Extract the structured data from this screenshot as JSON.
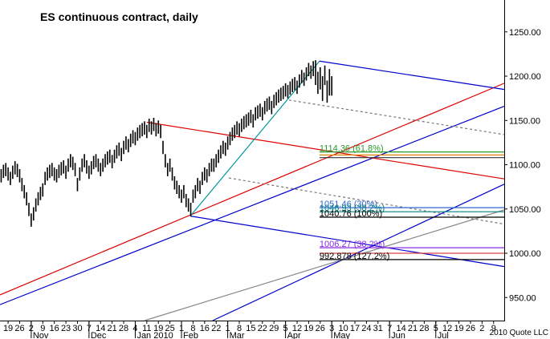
{
  "chart_data": {
    "type": "ohlc",
    "title": "ES continuous contract, daily",
    "copyright": "2010 Quote LLC",
    "color": "#000000",
    "xlim": [
      -0.5,
      217.6
    ],
    "ylim": [
      924,
      1286
    ],
    "yticks": [
      {
        "value": 950,
        "label": "950.00"
      },
      {
        "value": 1000,
        "label": "1000.00"
      },
      {
        "value": 1050,
        "label": "1050.00"
      },
      {
        "value": 1100,
        "label": "1100.00"
      },
      {
        "value": 1150,
        "label": "1150.00"
      },
      {
        "value": 1200,
        "label": "1200.00"
      },
      {
        "value": 1250,
        "label": "1250.00"
      }
    ],
    "xticks": [
      {
        "value": 3,
        "label": "19"
      },
      {
        "value": 8,
        "label": "26"
      },
      {
        "value": 13,
        "label": "2"
      },
      {
        "value": 18,
        "label": "9"
      },
      {
        "value": 23,
        "label": "16"
      },
      {
        "value": 28,
        "label": "23"
      },
      {
        "value": 33,
        "label": "30"
      },
      {
        "value": 38,
        "label": "7"
      },
      {
        "value": 43,
        "label": "14"
      },
      {
        "value": 48,
        "label": "21"
      },
      {
        "value": 53,
        "label": "28"
      },
      {
        "value": 58,
        "label": "4"
      },
      {
        "value": 63,
        "label": "11"
      },
      {
        "value": 68,
        "label": "19"
      },
      {
        "value": 73,
        "label": "25"
      },
      {
        "value": 78,
        "label": "1"
      },
      {
        "value": 83,
        "label": "8"
      },
      {
        "value": 88,
        "label": "16"
      },
      {
        "value": 93,
        "label": "22"
      },
      {
        "value": 98,
        "label": "1"
      },
      {
        "value": 103,
        "label": "8"
      },
      {
        "value": 108,
        "label": "15"
      },
      {
        "value": 113,
        "label": "22"
      },
      {
        "value": 118,
        "label": "29"
      },
      {
        "value": 123,
        "label": "5"
      },
      {
        "value": 128,
        "label": "12"
      },
      {
        "value": 133,
        "label": "19"
      },
      {
        "value": 138,
        "label": "26"
      },
      {
        "value": 143,
        "label": "3"
      },
      {
        "value": 148,
        "label": "10"
      },
      {
        "value": 153,
        "label": "17"
      },
      {
        "value": 158,
        "label": "24"
      },
      {
        "value": 163,
        "label": "31"
      },
      {
        "value": 168,
        "label": "7"
      },
      {
        "value": 173,
        "label": "14"
      },
      {
        "value": 178,
        "label": "21"
      },
      {
        "value": 183,
        "label": "28"
      },
      {
        "value": 188,
        "label": "5"
      },
      {
        "value": 193,
        "label": "12"
      },
      {
        "value": 198,
        "label": "19"
      },
      {
        "value": 203,
        "label": "26"
      },
      {
        "value": 208,
        "label": "2"
      },
      {
        "value": 213,
        "label": "9"
      }
    ],
    "month_labels": [
      {
        "value": 13,
        "label": "Nov"
      },
      {
        "value": 38,
        "label": "Dec"
      },
      {
        "value": 58,
        "label": "Jan 2010"
      },
      {
        "value": 78,
        "label": "Feb"
      },
      {
        "value": 98,
        "label": "Mar"
      },
      {
        "value": 123,
        "label": "Apr"
      },
      {
        "value": 143,
        "label": "May"
      },
      {
        "value": 168,
        "label": "Jun"
      },
      {
        "value": 188,
        "label": "Jul"
      }
    ],
    "high": [
      1095,
      1100,
      1102,
      1097,
      1092,
      1099,
      1104,
      1101,
      1095,
      1085,
      1077,
      1069,
      1057,
      1045,
      1052,
      1062,
      1069,
      1075,
      1079,
      1092,
      1097,
      1100,
      1102,
      1097,
      1095,
      1100,
      1103,
      1105,
      1099,
      1107,
      1112,
      1109,
      1102,
      1085,
      1097,
      1107,
      1112,
      1105,
      1099,
      1104,
      1110,
      1112,
      1107,
      1102,
      1107,
      1112,
      1115,
      1117,
      1111,
      1117,
      1122,
      1125,
      1119,
      1127,
      1132,
      1129,
      1135,
      1139,
      1137,
      1142,
      1145,
      1147,
      1149,
      1145,
      1152,
      1149,
      1153,
      1147,
      1150,
      1145,
      1127,
      1112,
      1102,
      1107,
      1097,
      1087,
      1082,
      1077,
      1072,
      1077,
      1067,
      1062,
      1057,
      1072,
      1077,
      1085,
      1082,
      1092,
      1097,
      1095,
      1102,
      1107,
      1107,
      1112,
      1117,
      1122,
      1127,
      1125,
      1132,
      1137,
      1142,
      1145,
      1149,
      1147,
      1152,
      1155,
      1157,
      1159,
      1162,
      1157,
      1165,
      1167,
      1169,
      1165,
      1172,
      1175,
      1177,
      1172,
      1179,
      1182,
      1185,
      1187,
      1189,
      1192,
      1190,
      1194,
      1197,
      1199,
      1195,
      1202,
      1207,
      1204,
      1210,
      1215,
      1212,
      1217,
      1218,
      1205,
      1210,
      1200,
      1212,
      1195,
      1208,
      1200
    ],
    "low": [
      1080,
      1085,
      1087,
      1082,
      1077,
      1084,
      1089,
      1086,
      1080,
      1070,
      1062,
      1054,
      1042,
      1030,
      1037,
      1047,
      1054,
      1060,
      1064,
      1077,
      1082,
      1085,
      1087,
      1082,
      1080,
      1085,
      1088,
      1090,
      1084,
      1092,
      1097,
      1094,
      1087,
      1070,
      1082,
      1092,
      1097,
      1090,
      1084,
      1089,
      1095,
      1097,
      1092,
      1087,
      1092,
      1097,
      1100,
      1102,
      1096,
      1102,
      1107,
      1110,
      1104,
      1112,
      1117,
      1114,
      1120,
      1124,
      1122,
      1127,
      1130,
      1132,
      1134,
      1130,
      1137,
      1134,
      1138,
      1132,
      1135,
      1130,
      1112,
      1097,
      1087,
      1092,
      1082,
      1072,
      1067,
      1062,
      1057,
      1062,
      1052,
      1047,
      1042,
      1057,
      1062,
      1070,
      1067,
      1077,
      1082,
      1080,
      1087,
      1092,
      1092,
      1097,
      1102,
      1107,
      1112,
      1110,
      1117,
      1122,
      1127,
      1130,
      1134,
      1132,
      1137,
      1140,
      1142,
      1144,
      1147,
      1142,
      1150,
      1152,
      1154,
      1150,
      1157,
      1160,
      1162,
      1157,
      1164,
      1167,
      1170,
      1172,
      1174,
      1177,
      1175,
      1179,
      1182,
      1184,
      1180,
      1187,
      1192,
      1189,
      1195,
      1200,
      1197,
      1200,
      1190,
      1180,
      1185,
      1172,
      1190,
      1170,
      1178,
      1178
    ],
    "trendlines": [
      {
        "color": "#dd0000",
        "dash": false,
        "points": [
          [
            -0.5,
            953
          ],
          [
            217.6,
            1192
          ]
        ]
      },
      {
        "color": "#0000cc",
        "dash": false,
        "points": [
          [
            -0.5,
            942
          ],
          [
            217.6,
            1166
          ]
        ]
      },
      {
        "color": "#0000cc",
        "dash": false,
        "points": [
          [
            137.7,
            1217
          ],
          [
            217.6,
            1185
          ]
        ]
      },
      {
        "color": "#0000cc",
        "dash": false,
        "points": [
          [
            81.8,
            1042
          ],
          [
            217.6,
            985
          ]
        ]
      },
      {
        "color": "#dd0000",
        "dash": false,
        "points": [
          [
            63,
            1148
          ],
          [
            217.6,
            1084
          ]
        ]
      },
      {
        "color": "#009999",
        "dash": false,
        "points": [
          [
            81.8,
            1042
          ],
          [
            137.7,
            1217
          ]
        ]
      },
      {
        "color": "#0000cc",
        "dash": false,
        "points": [
          [
            91.5,
            924
          ],
          [
            217.6,
            1078
          ]
        ]
      },
      {
        "color": "#888888",
        "dash": false,
        "points": [
          [
            62,
            924
          ],
          [
            217.6,
            1049
          ]
        ]
      },
      {
        "color": "#777777",
        "dash": true,
        "points": [
          [
            124.5,
            1173
          ],
          [
            217.6,
            1134
          ]
        ]
      },
      {
        "color": "#777777",
        "dash": true,
        "points": [
          [
            98.5,
            1085
          ],
          [
            217.6,
            1033
          ]
        ]
      }
    ],
    "fib_start": 137.7,
    "fib_levels": [
      {
        "value": 1114.36,
        "label": "1114.36 (61.8%)",
        "color": "#2a9a2a"
      },
      {
        "value": 1111,
        "color": "#e08000"
      },
      {
        "value": 1108,
        "color": "#333333"
      },
      {
        "value": 1051.46,
        "label": "1051.46 (30%)",
        "color": "#3366cc"
      },
      {
        "value": 1046.93,
        "label": "1046.93 (38.2%)",
        "color": "#008080"
      },
      {
        "value": 1040.76,
        "label": "1040.76 (100%)",
        "color": "#000000"
      },
      {
        "value": 1006.27,
        "label": "1006.27 (38.2%)",
        "color": "#8a2be2"
      },
      {
        "value": 1000,
        "color": "#dd4444"
      },
      {
        "value": 992.878,
        "label": "992.878 (127.2%)",
        "color": "#000000"
      }
    ]
  }
}
